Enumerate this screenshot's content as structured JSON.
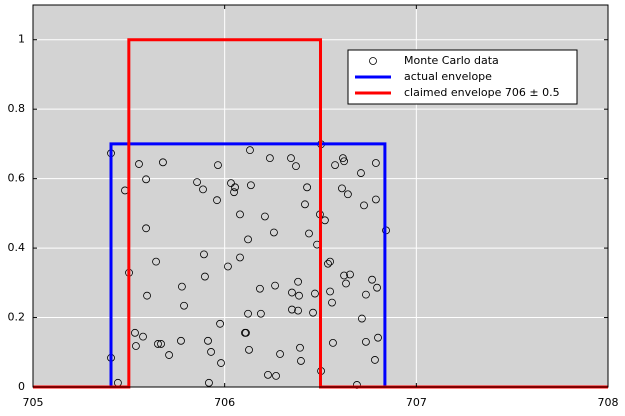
{
  "chart_data": {
    "type": "scatter",
    "xlim": [
      705,
      708
    ],
    "ylim": [
      0,
      1.1
    ],
    "xticks": [
      705,
      706,
      707,
      708
    ],
    "yticks": [
      0,
      0.2,
      0.4,
      0.6,
      0.8,
      1
    ],
    "grid": true,
    "legend": "upper right",
    "series": [
      {
        "name": "Monte Carlo data",
        "type": "scatter",
        "color": "#000000",
        "x": [
          705.407,
          705.407,
          705.443,
          705.48,
          705.501,
          705.532,
          705.537,
          705.553,
          705.574,
          705.59,
          705.59,
          705.595,
          705.642,
          705.652,
          705.668,
          705.678,
          705.71,
          705.772,
          705.777,
          705.788,
          705.856,
          705.887,
          705.892,
          705.897,
          705.913,
          705.918,
          705.929,
          705.96,
          705.965,
          705.976,
          705.981,
          706.017,
          706.033,
          706.049,
          706.054,
          706.08,
          706.08,
          706.106,
          706.111,
          706.122,
          706.122,
          706.127,
          706.132,
          706.137,
          706.184,
          706.189,
          706.21,
          706.226,
          706.236,
          706.257,
          706.263,
          706.268,
          706.289,
          706.346,
          706.351,
          706.351,
          706.372,
          706.383,
          706.383,
          706.388,
          706.393,
          706.398,
          706.419,
          706.43,
          706.44,
          706.461,
          706.471,
          706.482,
          706.503,
          706.497,
          706.503,
          706.523,
          706.539,
          706.55,
          706.55,
          706.56,
          706.565,
          706.576,
          706.612,
          706.617,
          706.623,
          706.623,
          706.633,
          706.643,
          706.654,
          706.69,
          706.711,
          706.716,
          706.727,
          706.737,
          706.737,
          706.769,
          706.784,
          706.789,
          706.789,
          706.795,
          706.8,
          706.842
        ],
        "y": [
          0.673,
          0.084,
          0.012,
          0.566,
          0.329,
          0.156,
          0.118,
          0.642,
          0.145,
          0.598,
          0.457,
          0.263,
          0.361,
          0.124,
          0.124,
          0.647,
          0.092,
          0.133,
          0.289,
          0.234,
          0.59,
          0.569,
          0.382,
          0.318,
          0.133,
          0.012,
          0.101,
          0.538,
          0.639,
          0.182,
          0.069,
          0.347,
          0.587,
          0.561,
          0.575,
          0.497,
          0.373,
          0.156,
          0.156,
          0.425,
          0.211,
          0.107,
          0.682,
          0.581,
          0.283,
          0.211,
          0.491,
          0.035,
          0.659,
          0.445,
          0.292,
          0.032,
          0.095,
          0.659,
          0.272,
          0.223,
          0.636,
          0.303,
          0.22,
          0.263,
          0.113,
          0.075,
          0.526,
          0.575,
          0.442,
          0.214,
          0.269,
          0.41,
          0.699,
          0.497,
          0.046,
          0.48,
          0.355,
          0.361,
          0.275,
          0.243,
          0.127,
          0.639,
          0.572,
          0.659,
          0.65,
          0.321,
          0.298,
          0.555,
          0.324,
          0.006,
          0.616,
          0.197,
          0.523,
          0.13,
          0.266,
          0.309,
          0.078,
          0.645,
          0.54,
          0.286,
          0.142,
          0.451
        ]
      },
      {
        "name": "actual envelope",
        "type": "line",
        "color": "#0000ff",
        "x": [
          705,
          705.407,
          705.407,
          706.836,
          706.836,
          708
        ],
        "y": [
          0,
          0,
          0.7,
          0.7,
          0,
          0
        ]
      },
      {
        "name": "claimed envelope 706 ± 0.5",
        "type": "line",
        "color": "#ff0000",
        "x": [
          705,
          705.5,
          705.5,
          706.5,
          706.5,
          708
        ],
        "y": [
          0,
          0,
          1,
          1,
          0,
          0
        ]
      }
    ]
  }
}
